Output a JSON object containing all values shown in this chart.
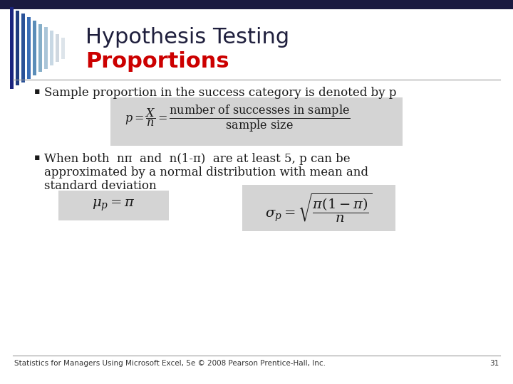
{
  "bg_color": "#ffffff",
  "title_line1": "Hypothesis Testing",
  "title_line2": "Proportions",
  "title1_color": "#1f1f3d",
  "title2_color": "#cc0000",
  "bullet1": "Sample proportion in the success category is denoted by p",
  "bullet2_line1": "When both  nπ  and  n(1-π)  are at least 5, p can be",
  "bullet2_line2": "approximated by a normal distribution with mean and",
  "bullet2_line3": "standard deviation",
  "footer": "Statistics for Managers Using Microsoft Excel, 5e © 2008 Pearson Prentice-Hall, Inc.",
  "page_num": "31",
  "formula_bg": "#d4d4d4",
  "top_bar_color": "#1a1a40",
  "stripe_colors": [
    "#1a237e",
    "#1e3a7e",
    "#2a5298",
    "#3a6db5",
    "#5b8db8",
    "#85aec8",
    "#aac5d8",
    "#c8d8e4",
    "#d0d8e0",
    "#dde4ea"
  ],
  "text_color": "#1a1a1a",
  "footer_color": "#333333",
  "separator_color": "#999999",
  "bullet_marker": "▪"
}
